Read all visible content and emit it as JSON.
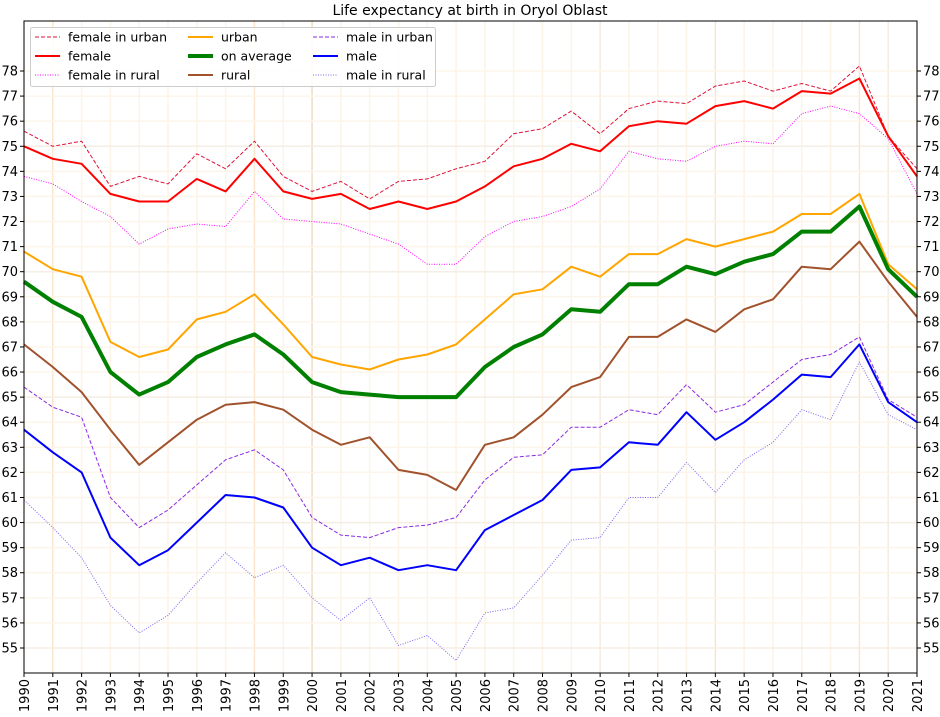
{
  "chart_data": {
    "type": "line",
    "title": "Life expectancy at birth in Oryol Oblast",
    "xlabel": "",
    "ylabel": "",
    "xlim": [
      1990,
      2021
    ],
    "ylim": [
      54,
      79.9
    ],
    "grid": true,
    "legend_position": "top-left",
    "x": [
      1990,
      1991,
      1992,
      1993,
      1994,
      1995,
      1996,
      1997,
      1998,
      1999,
      2000,
      2001,
      2002,
      2003,
      2004,
      2005,
      2006,
      2007,
      2008,
      2009,
      2010,
      2011,
      2012,
      2013,
      2014,
      2015,
      2016,
      2017,
      2018,
      2019,
      2020,
      2021
    ],
    "x_tick_labels": [
      "1990",
      "1991",
      "1992",
      "1993",
      "1994",
      "1995",
      "1996",
      "1997",
      "1998",
      "1999",
      "2000",
      "2001",
      "2002",
      "2003",
      "2004",
      "2005",
      "2006",
      "2007",
      "2008",
      "2009",
      "2010",
      "2011",
      "2012",
      "2013",
      "2014",
      "2015",
      "2016",
      "2017",
      "2018",
      "2019",
      "2020",
      "2021"
    ],
    "y_ticks": [
      55,
      56,
      57,
      58,
      59,
      60,
      61,
      62,
      63,
      64,
      65,
      66,
      67,
      68,
      69,
      70,
      71,
      72,
      73,
      74,
      75,
      76,
      77,
      78
    ],
    "y_tick_labels": [
      "55",
      "56",
      "57",
      "58",
      "59",
      "60",
      "61",
      "62",
      "63",
      "64",
      "65",
      "66",
      "67",
      "68",
      "69",
      "70",
      "71",
      "72",
      "73",
      "74",
      "75",
      "76",
      "77",
      "78"
    ],
    "series": [
      {
        "name": "female in urban",
        "color": "#dc143c",
        "style": "dashed",
        "width": 1,
        "values": [
          75.6,
          75.0,
          75.2,
          73.4,
          73.8,
          73.5,
          74.7,
          74.1,
          75.2,
          73.8,
          73.2,
          73.6,
          72.9,
          73.6,
          73.7,
          74.1,
          74.4,
          75.5,
          75.7,
          76.4,
          75.5,
          76.5,
          76.8,
          76.7,
          77.4,
          77.6,
          77.2,
          77.5,
          77.2,
          78.2,
          75.4,
          74.1
        ]
      },
      {
        "name": "female",
        "color": "#ff0000",
        "style": "solid",
        "width": 2,
        "values": [
          75.0,
          74.5,
          74.3,
          73.1,
          72.8,
          72.8,
          73.7,
          73.2,
          74.5,
          73.2,
          72.9,
          73.1,
          72.5,
          72.8,
          72.5,
          72.8,
          73.4,
          74.2,
          74.5,
          75.1,
          74.8,
          75.8,
          76.0,
          75.9,
          76.6,
          76.8,
          76.5,
          77.2,
          77.1,
          77.7,
          75.4,
          73.8
        ]
      },
      {
        "name": "female in rural",
        "color": "#ff00ff",
        "style": "dotted",
        "width": 1,
        "values": [
          73.8,
          73.5,
          72.8,
          72.2,
          71.1,
          71.7,
          71.9,
          71.8,
          73.2,
          72.1,
          72.0,
          71.9,
          71.5,
          71.1,
          70.3,
          70.3,
          71.4,
          72.0,
          72.2,
          72.6,
          73.3,
          74.8,
          74.5,
          74.4,
          75.0,
          75.2,
          75.1,
          76.3,
          76.6,
          76.3,
          75.3,
          73.1
        ]
      },
      {
        "name": "urban",
        "color": "#ffa500",
        "style": "solid",
        "width": 2,
        "values": [
          70.8,
          70.1,
          69.8,
          67.2,
          66.6,
          66.9,
          68.1,
          68.4,
          69.1,
          67.9,
          66.6,
          66.3,
          66.1,
          66.5,
          66.7,
          67.1,
          68.1,
          69.1,
          69.3,
          70.2,
          69.8,
          70.7,
          70.7,
          71.3,
          71.0,
          71.3,
          71.6,
          72.3,
          72.3,
          73.1,
          70.3,
          69.3
        ]
      },
      {
        "name": "on average",
        "color": "#008000",
        "style": "solid",
        "width": 4,
        "values": [
          69.6,
          68.8,
          68.2,
          66.0,
          65.1,
          65.6,
          66.6,
          67.1,
          67.5,
          66.7,
          65.6,
          65.2,
          65.1,
          65.0,
          65.0,
          65.0,
          66.2,
          67.0,
          67.5,
          68.5,
          68.4,
          69.5,
          69.5,
          70.2,
          69.9,
          70.4,
          70.7,
          71.6,
          71.6,
          72.6,
          70.1,
          69.0
        ]
      },
      {
        "name": "rural",
        "color": "#a0522d",
        "style": "solid",
        "width": 2,
        "values": [
          67.1,
          66.2,
          65.2,
          63.7,
          62.3,
          63.2,
          64.1,
          64.7,
          64.8,
          64.5,
          63.7,
          63.1,
          63.4,
          62.1,
          61.9,
          61.3,
          63.1,
          63.4,
          64.3,
          65.4,
          65.8,
          67.4,
          67.4,
          68.1,
          67.6,
          68.5,
          68.9,
          70.2,
          70.1,
          71.2,
          69.6,
          68.2
        ]
      },
      {
        "name": "male in urban",
        "color": "#8a2be2",
        "style": "dashed",
        "width": 1,
        "values": [
          65.4,
          64.6,
          64.2,
          61.0,
          59.8,
          60.5,
          61.5,
          62.5,
          62.9,
          62.1,
          60.2,
          59.5,
          59.4,
          59.8,
          59.9,
          60.2,
          61.7,
          62.6,
          62.7,
          63.8,
          63.8,
          64.5,
          64.3,
          65.5,
          64.4,
          64.7,
          65.6,
          66.5,
          66.7,
          67.4,
          64.9,
          64.2
        ]
      },
      {
        "name": "male",
        "color": "#0000ff",
        "style": "solid",
        "width": 2,
        "values": [
          63.7,
          62.8,
          62.0,
          59.4,
          58.3,
          58.9,
          60.0,
          61.1,
          61.0,
          60.6,
          59.0,
          58.3,
          58.6,
          58.1,
          58.3,
          58.1,
          59.7,
          60.3,
          60.9,
          62.1,
          62.2,
          63.2,
          63.1,
          64.4,
          63.3,
          64.0,
          64.9,
          65.9,
          65.8,
          67.1,
          64.8,
          64.0
        ]
      },
      {
        "name": "male in rural",
        "color": "#7b68ee",
        "style": "dotted",
        "width": 1,
        "values": [
          60.9,
          59.8,
          58.6,
          56.7,
          55.6,
          56.3,
          57.6,
          58.8,
          57.8,
          58.3,
          57.0,
          56.1,
          57.0,
          55.1,
          55.5,
          54.5,
          56.4,
          56.6,
          57.9,
          59.3,
          59.4,
          61.0,
          61.0,
          62.4,
          61.2,
          62.5,
          63.2,
          64.5,
          64.1,
          66.4,
          64.3,
          63.7
        ]
      }
    ],
    "legend_order": [
      "female in urban",
      "female",
      "female in rural",
      "urban",
      "on average",
      "rural",
      "male in urban",
      "male",
      "male in rural"
    ]
  }
}
